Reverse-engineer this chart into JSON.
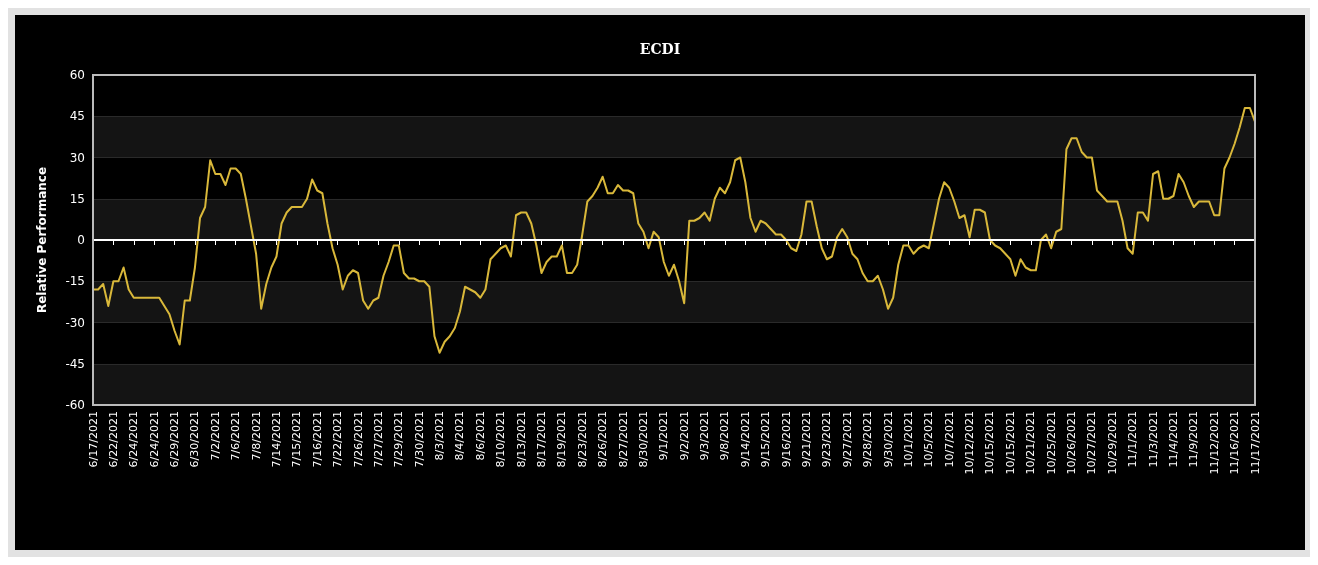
{
  "chart_data": {
    "type": "line",
    "title": "ECDI",
    "ylabel": "Relative Performance",
    "categories": [
      "6/17/2021",
      null,
      null,
      null,
      "6/22/2021",
      null,
      null,
      null,
      "6/24/2021",
      null,
      null,
      null,
      "6/24/2021",
      null,
      null,
      null,
      "6/29/2021",
      null,
      null,
      null,
      "6/30/2021",
      null,
      null,
      null,
      "7/2/2021",
      null,
      null,
      null,
      "7/6/2021",
      null,
      null,
      null,
      "7/8/2021",
      null,
      null,
      null,
      "7/14/2021",
      null,
      null,
      null,
      "7/15/2021",
      null,
      null,
      null,
      "7/16/2021",
      null,
      null,
      null,
      "7/22/2021",
      null,
      null,
      null,
      "7/26/2021",
      null,
      null,
      null,
      "7/27/2021",
      null,
      null,
      null,
      "7/29/2021",
      null,
      null,
      null,
      "7/30/2021",
      null,
      null,
      null,
      "8/3/2021",
      null,
      null,
      null,
      "8/4/2021",
      null,
      null,
      null,
      "8/6/2021",
      null,
      null,
      null,
      "8/10/2021",
      null,
      null,
      null,
      "8/13/2021",
      null,
      null,
      null,
      "8/17/2021",
      null,
      null,
      null,
      "8/19/2021",
      null,
      null,
      null,
      "8/23/2021",
      null,
      null,
      null,
      "8/26/2021",
      null,
      null,
      null,
      "8/27/2021",
      null,
      null,
      null,
      "8/30/2021",
      null,
      null,
      null,
      "9/1/2021",
      null,
      null,
      null,
      "9/2/2021",
      null,
      null,
      null,
      "9/3/2021",
      null,
      null,
      null,
      "9/8/2021",
      null,
      null,
      null,
      "9/14/2021",
      null,
      null,
      null,
      "9/15/2021",
      null,
      null,
      null,
      "9/16/2021",
      null,
      null,
      null,
      "9/21/2021",
      null,
      null,
      null,
      "9/23/2021",
      null,
      null,
      null,
      "9/27/2021",
      null,
      null,
      null,
      "9/28/2021",
      null,
      null,
      null,
      "9/30/2021",
      null,
      null,
      null,
      "10/1/2021",
      null,
      null,
      null,
      "10/5/2021",
      null,
      null,
      null,
      "10/7/2021",
      null,
      null,
      null,
      "10/12/2021",
      null,
      null,
      null,
      "10/15/2021",
      null,
      null,
      null,
      "10/15/2021",
      null,
      null,
      null,
      "10/21/2021",
      null,
      null,
      null,
      "10/25/2021",
      null,
      null,
      null,
      "10/26/2021",
      null,
      null,
      null,
      "10/27/2021",
      null,
      null,
      null,
      "10/29/2021",
      null,
      null,
      null,
      "11/1/2021",
      null,
      null,
      null,
      "11/3/2021",
      null,
      null,
      null,
      "11/4/2021",
      null,
      null,
      null,
      "11/9/2021",
      null,
      null,
      null,
      "11/12/2021",
      null,
      null,
      null,
      "11/16/2021",
      null,
      null,
      null,
      "11/17/2021"
    ],
    "series": [
      {
        "color": "#d9b83a",
        "values": [
          -18,
          -18,
          -16,
          -24,
          -15,
          -15,
          -10,
          -18,
          -21,
          -21,
          -21,
          -21,
          -21,
          -21,
          -24,
          -27,
          -33,
          -38,
          -22,
          -22,
          -10,
          8,
          12,
          29,
          24,
          24,
          20,
          26,
          26,
          24,
          15,
          5,
          -5,
          -25,
          -16,
          -10,
          -6,
          6,
          10,
          12,
          12,
          12,
          15,
          22,
          18,
          17,
          6,
          -3,
          -9,
          -18,
          -13,
          -11,
          -12,
          -22,
          -25,
          -22,
          -21,
          -13,
          -8,
          -2,
          -2,
          -12,
          -14,
          -14,
          -15,
          -15,
          -17,
          -35,
          -41,
          -37,
          -35,
          -32,
          -26,
          -17,
          -18,
          -19,
          -21,
          -18,
          -7,
          -5,
          -3,
          -2,
          -6,
          9,
          10,
          10,
          6,
          -2,
          -12,
          -8,
          -6,
          -6,
          -2,
          -12,
          -12,
          -9,
          2,
          14,
          16,
          19,
          23,
          17,
          17,
          20,
          18,
          18,
          17,
          6,
          3,
          -3,
          3,
          1,
          -8,
          -13,
          -9,
          -15,
          -23,
          7,
          7,
          8,
          10,
          7,
          15,
          19,
          17,
          21,
          29,
          30,
          21,
          8,
          3,
          7,
          6,
          4,
          2,
          2,
          0,
          -3,
          -4,
          2,
          14,
          14,
          5,
          -3,
          -7,
          -6,
          1,
          4,
          1,
          -5,
          -7,
          -12,
          -15,
          -15,
          -13,
          -18,
          -25,
          -21,
          -9,
          -2,
          -2,
          -5,
          -3,
          -2,
          -3,
          6,
          15,
          21,
          19,
          14,
          8,
          9,
          1,
          11,
          11,
          10,
          0,
          -2,
          -3,
          -5,
          -7,
          -13,
          -7,
          -10,
          -11,
          -11,
          0,
          2,
          -3,
          3,
          4,
          33,
          37,
          37,
          32,
          30,
          30,
          18,
          16,
          14,
          14,
          14,
          7,
          -3,
          -5,
          10,
          10,
          7,
          24,
          25,
          15,
          15,
          16,
          24,
          21,
          16,
          12,
          14,
          14,
          14,
          9,
          9,
          26,
          30,
          35,
          41,
          48,
          48,
          43
        ]
      }
    ],
    "ylim": [
      -60,
      60
    ],
    "yticks": [
      -60,
      -45,
      -30,
      -15,
      0,
      15,
      30,
      45,
      60
    ],
    "ref_lines": [
      {
        "axis": "y",
        "value": 0,
        "color": "#ffffff"
      }
    ],
    "grid": "y",
    "marker": "none",
    "line_style": "solid"
  }
}
